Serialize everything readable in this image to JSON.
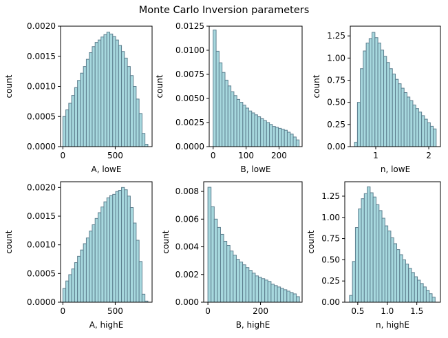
{
  "title": "Monte Carlo Inversion parameters",
  "colors": {
    "bar_fill": "#a7d8de",
    "bar_edge": "#5c7e8e",
    "axes": "#000000"
  },
  "chart_data": [
    {
      "type": "bar",
      "panel": "A-lowE",
      "xlabel": "A, lowE",
      "ylabel": "count",
      "xlim": [
        -22,
        852
      ],
      "ylim": [
        0,
        0.002
      ],
      "xticks": [
        0,
        500
      ],
      "xtick_labels": [
        "0",
        "500"
      ],
      "yticks": [
        0,
        0.0005,
        0.001,
        0.0015,
        0.002
      ],
      "ytick_labels": [
        "0.0000",
        "0.0005",
        "0.0010",
        "0.0015",
        "0.0020"
      ],
      "bin_edges": [
        0,
        28,
        56,
        84,
        112,
        140,
        168,
        196,
        224,
        252,
        280,
        308,
        336,
        364,
        392,
        420,
        448,
        476,
        504,
        532,
        560,
        588,
        616,
        644,
        672,
        700,
        728,
        756,
        784,
        812
      ],
      "values": [
        0.0005,
        0.00061,
        0.00072,
        0.00085,
        0.00098,
        0.0011,
        0.00122,
        0.00133,
        0.00145,
        0.00156,
        0.00166,
        0.00173,
        0.00177,
        0.00182,
        0.00186,
        0.0019,
        0.00187,
        0.00183,
        0.00177,
        0.00168,
        0.00158,
        0.00147,
        0.00133,
        0.00118,
        0.001,
        0.00079,
        0.00055,
        0.00022,
        4e-05
      ]
    },
    {
      "type": "bar",
      "panel": "B-lowE",
      "xlabel": "B, lowE",
      "ylabel": "count",
      "xlim": [
        -12,
        270
      ],
      "ylim": [
        0,
        0.0125
      ],
      "xticks": [
        0,
        100,
        200
      ],
      "xtick_labels": [
        "0",
        "100",
        "200"
      ],
      "yticks": [
        0,
        0.0025,
        0.005,
        0.0075,
        0.01,
        0.0125
      ],
      "ytick_labels": [
        "0.0000",
        "0.0025",
        "0.0050",
        "0.0075",
        "0.0100",
        "0.0125"
      ],
      "bin_edges": [
        0,
        9,
        18,
        27,
        36,
        45,
        54,
        63,
        72,
        81,
        90,
        99,
        108,
        117,
        126,
        135,
        144,
        153,
        162,
        171,
        180,
        189,
        198,
        207,
        216,
        225,
        234,
        243,
        252,
        261
      ],
      "values": [
        0.0121,
        0.0099,
        0.0087,
        0.0077,
        0.0069,
        0.0063,
        0.0057,
        0.0053,
        0.0049,
        0.0046,
        0.0043,
        0.004,
        0.0037,
        0.0035,
        0.0033,
        0.0031,
        0.0029,
        0.0027,
        0.0025,
        0.0023,
        0.0021,
        0.002,
        0.0019,
        0.0018,
        0.0017,
        0.0015,
        0.0013,
        0.001,
        0.0007
      ]
    },
    {
      "type": "bar",
      "panel": "n-lowE",
      "xlabel": "n, lowE",
      "ylabel": "count",
      "xlim": [
        0.52,
        2.22
      ],
      "ylim": [
        0,
        1.36
      ],
      "xticks": [
        1,
        2
      ],
      "xtick_labels": [
        "1",
        "2"
      ],
      "yticks": [
        0,
        0.25,
        0.5,
        0.75,
        1.0,
        1.25
      ],
      "ytick_labels": [
        "0.00",
        "0.25",
        "0.50",
        "0.75",
        "1.00",
        "1.25"
      ],
      "bin_edges": [
        0.6,
        0.655,
        0.71,
        0.765,
        0.82,
        0.875,
        0.93,
        0.985,
        1.04,
        1.095,
        1.15,
        1.205,
        1.26,
        1.315,
        1.37,
        1.425,
        1.48,
        1.535,
        1.59,
        1.645,
        1.7,
        1.755,
        1.81,
        1.865,
        1.92,
        1.975,
        2.03,
        2.085,
        2.14
      ],
      "values": [
        0.05,
        0.5,
        0.88,
        1.08,
        1.17,
        1.22,
        1.29,
        1.23,
        1.17,
        1.09,
        1.02,
        0.95,
        0.88,
        0.82,
        0.76,
        0.71,
        0.66,
        0.61,
        0.56,
        0.52,
        0.47,
        0.43,
        0.39,
        0.35,
        0.31,
        0.27,
        0.23,
        0.2
      ]
    },
    {
      "type": "bar",
      "panel": "A-highE",
      "xlabel": "A, highE",
      "ylabel": "count",
      "xlim": [
        -22,
        852
      ],
      "ylim": [
        0,
        0.0021
      ],
      "xticks": [
        0,
        500
      ],
      "xtick_labels": [
        "0",
        "500"
      ],
      "yticks": [
        0,
        0.0005,
        0.001,
        0.0015,
        0.002
      ],
      "ytick_labels": [
        "0.0000",
        "0.0005",
        "0.0010",
        "0.0015",
        "0.0020"
      ],
      "bin_edges": [
        0,
        28,
        56,
        84,
        112,
        140,
        168,
        196,
        224,
        252,
        280,
        308,
        336,
        364,
        392,
        420,
        448,
        476,
        504,
        532,
        560,
        588,
        616,
        644,
        672,
        700,
        728,
        756,
        784,
        812
      ],
      "values": [
        0.00024,
        0.00037,
        0.00048,
        0.00058,
        0.00069,
        0.0008,
        0.00091,
        0.00102,
        0.00112,
        0.00124,
        0.00135,
        0.00146,
        0.00156,
        0.00166,
        0.00175,
        0.00182,
        0.00186,
        0.00188,
        0.00193,
        0.00195,
        0.002,
        0.00196,
        0.00185,
        0.00165,
        0.00138,
        0.00108,
        0.00071,
        0.00014,
        2e-05
      ]
    },
    {
      "type": "bar",
      "panel": "B-highE",
      "xlabel": "B, highE",
      "ylabel": "count",
      "xlim": [
        -16,
        358
      ],
      "ylim": [
        0,
        0.0087
      ],
      "xticks": [
        0,
        200
      ],
      "xtick_labels": [
        "0",
        "200"
      ],
      "yticks": [
        0,
        0.002,
        0.004,
        0.006,
        0.008
      ],
      "ytick_labels": [
        "0.000",
        "0.002",
        "0.004",
        "0.006",
        "0.008"
      ],
      "bin_edges": [
        0,
        12,
        24,
        36,
        48,
        60,
        72,
        84,
        96,
        108,
        120,
        132,
        144,
        156,
        168,
        180,
        192,
        204,
        216,
        228,
        240,
        252,
        264,
        276,
        288,
        300,
        312,
        324,
        336,
        348
      ],
      "values": [
        0.0083,
        0.0069,
        0.006,
        0.0054,
        0.0049,
        0.0044,
        0.0041,
        0.0037,
        0.0034,
        0.0031,
        0.0029,
        0.0027,
        0.0025,
        0.0023,
        0.0021,
        0.0019,
        0.0018,
        0.0017,
        0.0016,
        0.0015,
        0.0013,
        0.0012,
        0.0011,
        0.001,
        0.0009,
        0.0008,
        0.0007,
        0.0006,
        0.0004
      ]
    },
    {
      "type": "bar",
      "panel": "n-highE",
      "xlabel": "n, highE",
      "ylabel": "count",
      "xlim": [
        0.28,
        1.9
      ],
      "ylim": [
        0,
        1.42
      ],
      "xticks": [
        0.5,
        1.0,
        1.5
      ],
      "xtick_labels": [
        "0.5",
        "1.0",
        "1.5"
      ],
      "yticks": [
        0,
        0.25,
        0.5,
        0.75,
        1.0,
        1.25
      ],
      "ytick_labels": [
        "0.00",
        "0.25",
        "0.50",
        "0.75",
        "1.00",
        "1.25"
      ],
      "bin_edges": [
        0.36,
        0.41,
        0.46,
        0.51,
        0.56,
        0.61,
        0.66,
        0.71,
        0.76,
        0.81,
        0.86,
        0.91,
        0.96,
        1.01,
        1.06,
        1.11,
        1.16,
        1.21,
        1.26,
        1.31,
        1.36,
        1.41,
        1.46,
        1.51,
        1.56,
        1.61,
        1.66,
        1.71,
        1.76,
        1.81
      ],
      "values": [
        0.08,
        0.48,
        0.88,
        1.1,
        1.22,
        1.28,
        1.36,
        1.29,
        1.24,
        1.15,
        1.08,
        0.99,
        0.9,
        0.84,
        0.76,
        0.69,
        0.62,
        0.56,
        0.5,
        0.45,
        0.4,
        0.35,
        0.3,
        0.26,
        0.22,
        0.18,
        0.14,
        0.1,
        0.06
      ]
    }
  ]
}
